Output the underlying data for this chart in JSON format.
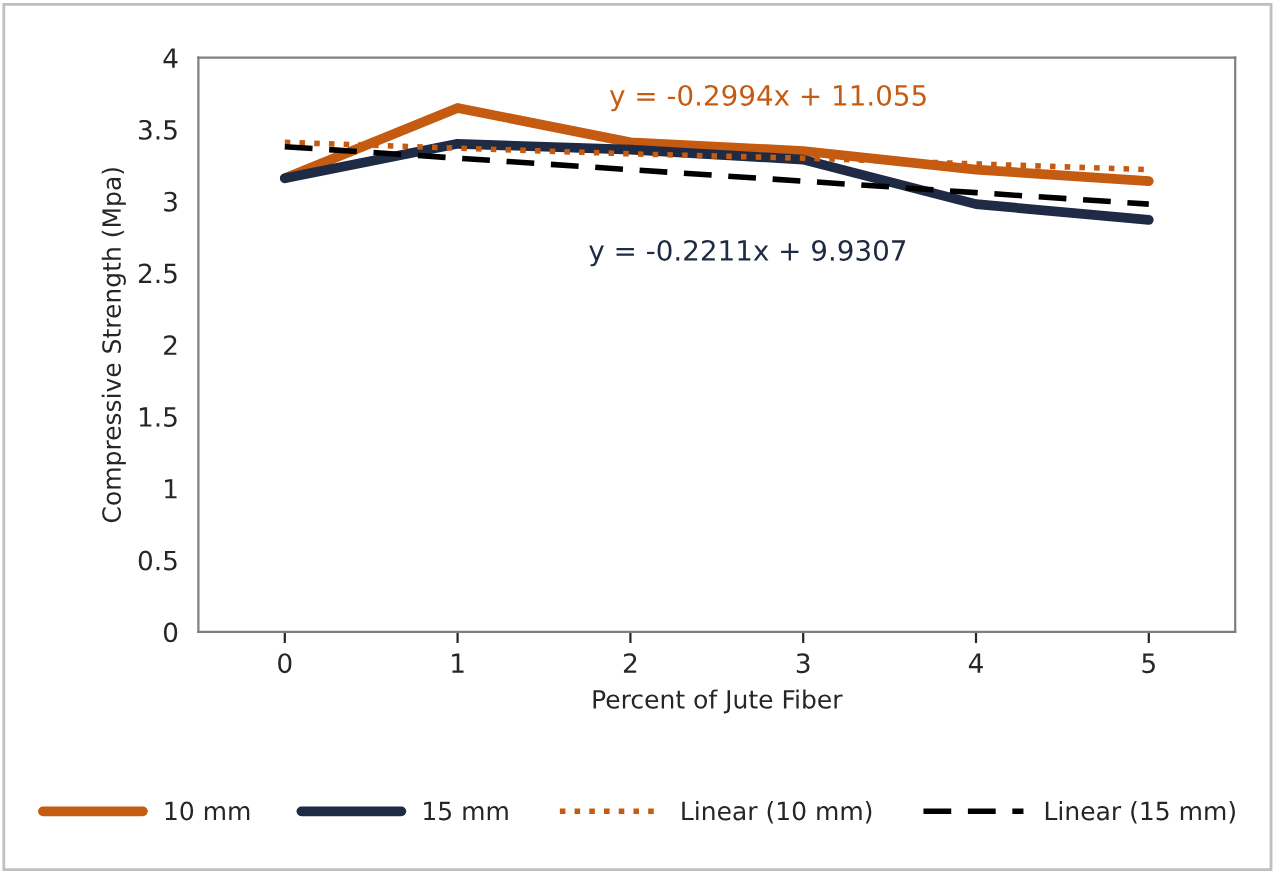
{
  "chart_data": {
    "type": "line",
    "xlabel": "Percent of Jute Fiber",
    "ylabel": "Compressive Strength (Mpa)",
    "categories": [
      "0",
      "1",
      "2",
      "3",
      "4",
      "5"
    ],
    "series": [
      {
        "name": "10 mm",
        "color": "#c55a11",
        "values": [
          3.16,
          3.65,
          3.41,
          3.35,
          3.22,
          3.14
        ],
        "line_style": "solid"
      },
      {
        "name": "15 mm",
        "color": "#1f2a44",
        "values": [
          3.16,
          3.4,
          3.36,
          3.29,
          2.98,
          2.87
        ],
        "line_style": "solid"
      },
      {
        "name": "Linear (10 mm)",
        "color": "#c55a11",
        "values": [
          3.41,
          3.37,
          3.33,
          3.3,
          3.26,
          3.22
        ],
        "line_style": "dotted"
      },
      {
        "name": "Linear (15 mm)",
        "color": "#000000",
        "values": [
          3.38,
          3.3,
          3.22,
          3.14,
          3.06,
          2.98
        ],
        "line_style": "dashed"
      }
    ],
    "annotations": [
      "y = -0.2994x + 11.055",
      "y = -0.2211x + 9.9307"
    ],
    "ylim": [
      0,
      4
    ],
    "yticks": [
      0,
      0.5,
      1,
      1.5,
      2,
      2.5,
      3,
      3.5,
      4
    ],
    "grid": false,
    "legend": "bottom",
    "marker": "none"
  }
}
